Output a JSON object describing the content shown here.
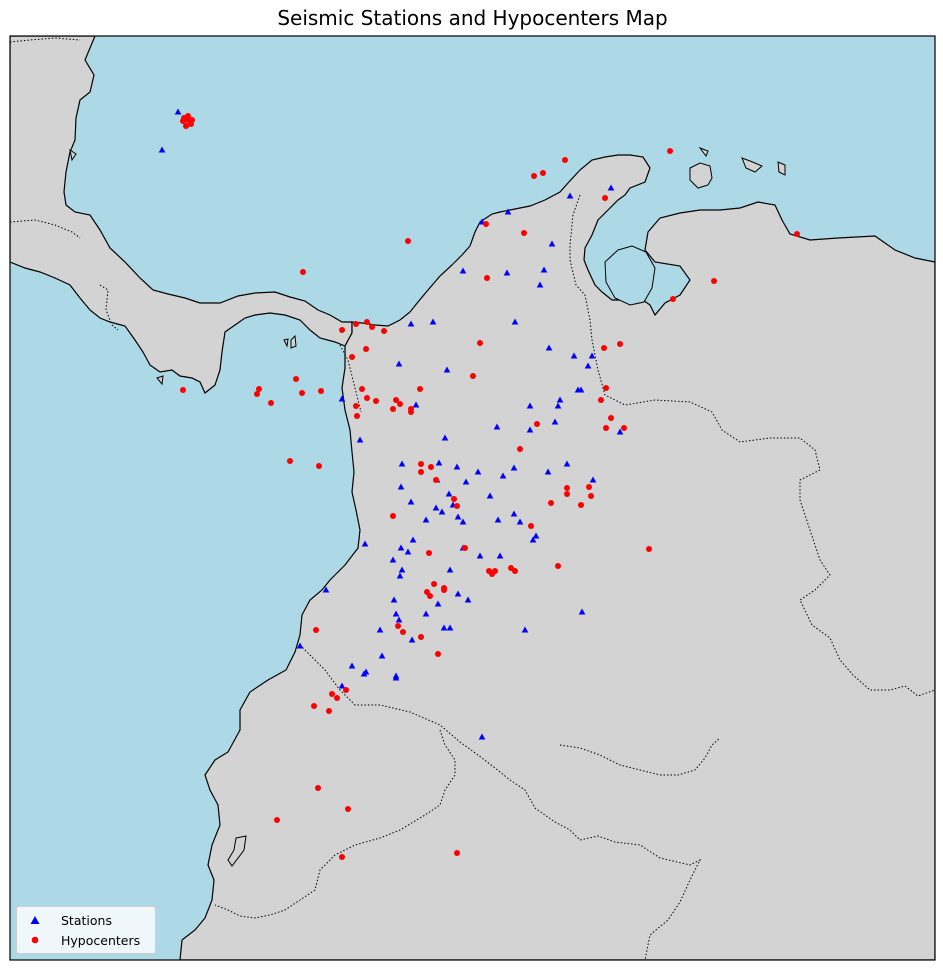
{
  "title": "Seismic Stations and Hypocenters Map",
  "colors": {
    "ocean": "#add8e6",
    "land": "#d3d3d3",
    "station": "#0000ff",
    "hypocenter": "#ff0000",
    "coast": "#000000"
  },
  "legend": {
    "placement": "lower-left",
    "items": [
      {
        "label": "Stations",
        "marker": "triangle",
        "color": "#0000ff"
      },
      {
        "label": "Hypocenters",
        "marker": "circle",
        "color": "#ff0000"
      }
    ]
  }
}
